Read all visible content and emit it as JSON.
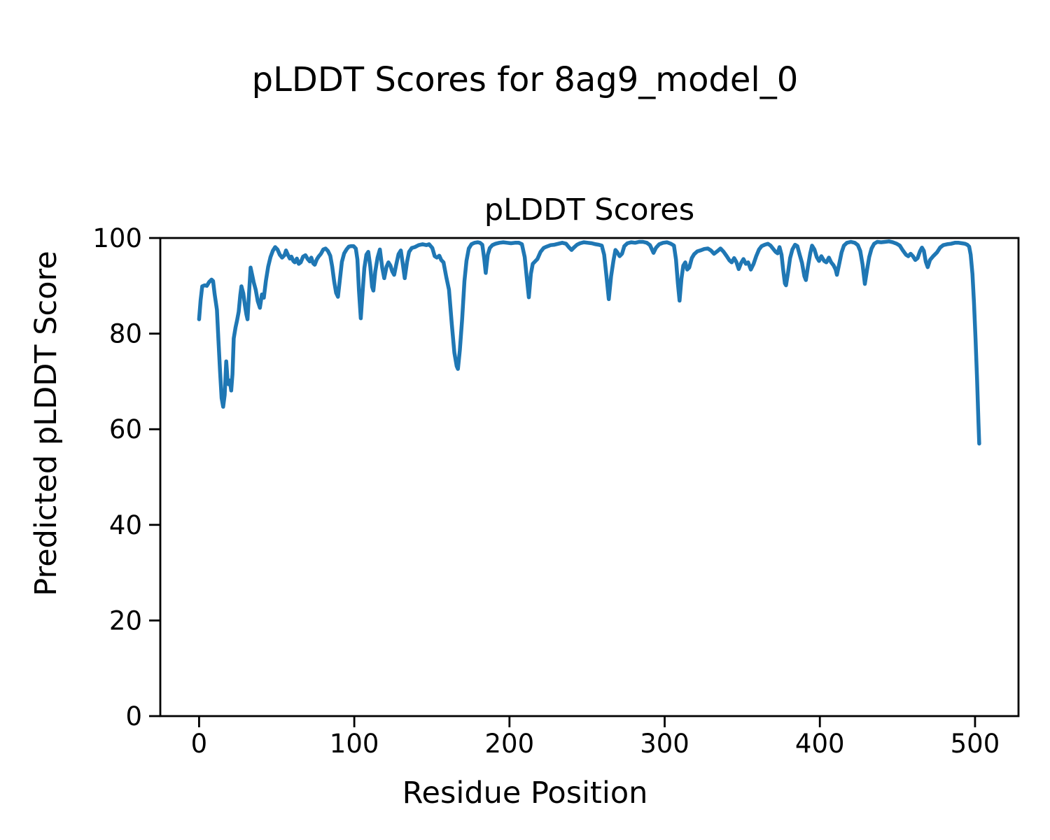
{
  "figure_title": "pLDDT Scores for 8ag9_model_0",
  "chart_data": {
    "type": "line",
    "title": "pLDDT Scores",
    "xlabel": "Residue Position",
    "ylabel": "Predicted pLDDT Score",
    "xlim": [
      -25,
      528
    ],
    "ylim": [
      0,
      100
    ],
    "x_ticks": [
      0,
      100,
      200,
      300,
      400,
      500
    ],
    "y_ticks": [
      0,
      20,
      40,
      60,
      80,
      100
    ],
    "grid": false,
    "legend": null,
    "line_color": "#1f77b4",
    "axis_color": "#000000",
    "series": [
      {
        "name": "pLDDT",
        "points": [
          [
            0,
            83
          ],
          [
            1,
            87
          ],
          [
            2,
            89.9
          ],
          [
            3.5,
            90.1
          ],
          [
            5,
            90
          ],
          [
            6.5,
            90.8
          ],
          [
            8,
            91.3
          ],
          [
            9,
            91
          ],
          [
            10,
            88.3
          ],
          [
            11.5,
            85
          ],
          [
            12.5,
            78.5
          ],
          [
            13.5,
            72
          ],
          [
            14.5,
            66.5
          ],
          [
            15.5,
            64.7
          ],
          [
            16.5,
            67.2
          ],
          [
            17.5,
            74.2
          ],
          [
            18.3,
            70.5
          ],
          [
            19,
            69.4
          ],
          [
            19.8,
            70.2
          ],
          [
            20.7,
            68.1
          ],
          [
            21.5,
            71.5
          ],
          [
            22.3,
            79
          ],
          [
            23.5,
            81.3
          ],
          [
            24.5,
            82.8
          ],
          [
            25.5,
            84.6
          ],
          [
            26.5,
            88
          ],
          [
            27.3,
            89.9
          ],
          [
            28.5,
            88.4
          ],
          [
            29.5,
            86
          ],
          [
            30.5,
            84
          ],
          [
            31.2,
            83
          ],
          [
            32.2,
            88.5
          ],
          [
            33.2,
            93.8
          ],
          [
            34.2,
            92.3
          ],
          [
            35.2,
            90.7
          ],
          [
            36.5,
            89.2
          ],
          [
            37.8,
            86.8
          ],
          [
            39.2,
            85.4
          ],
          [
            40.5,
            88.2
          ],
          [
            41.7,
            87.5
          ],
          [
            43,
            91
          ],
          [
            44.5,
            94
          ],
          [
            46,
            96
          ],
          [
            47.5,
            97.3
          ],
          [
            49,
            98.1
          ],
          [
            50.5,
            97.6
          ],
          [
            52,
            96.5
          ],
          [
            53.5,
            95.9
          ],
          [
            55,
            96.4
          ],
          [
            56,
            97.4
          ],
          [
            57.5,
            96.3
          ],
          [
            58.5,
            95.7
          ],
          [
            59.5,
            96.1
          ],
          [
            60.7,
            95.2
          ],
          [
            61.7,
            94.9
          ],
          [
            63,
            95.7
          ],
          [
            64.2,
            94.6
          ],
          [
            65.5,
            94.9
          ],
          [
            67,
            96.1
          ],
          [
            68.5,
            96.4
          ],
          [
            70,
            95.6
          ],
          [
            71.3,
            95.1
          ],
          [
            72.3,
            95.9
          ],
          [
            73.5,
            94.7
          ],
          [
            74.5,
            94.4
          ],
          [
            75.8,
            95.5
          ],
          [
            77,
            96.1
          ],
          [
            78.5,
            96.7
          ],
          [
            80,
            97.6
          ],
          [
            81.5,
            97.8
          ],
          [
            83,
            97.3
          ],
          [
            84.5,
            96.3
          ],
          [
            85.8,
            94
          ],
          [
            87,
            91
          ],
          [
            88.3,
            88.5
          ],
          [
            89.5,
            87.7
          ],
          [
            90.8,
            91.5
          ],
          [
            92,
            95
          ],
          [
            93.5,
            96.8
          ],
          [
            95,
            97.6
          ],
          [
            96.5,
            98.2
          ],
          [
            98,
            98.3
          ],
          [
            99.5,
            98.3
          ],
          [
            101,
            97.8
          ],
          [
            102,
            95.5
          ],
          [
            103,
            89
          ],
          [
            104.2,
            83.2
          ],
          [
            105.3,
            88.5
          ],
          [
            106.5,
            93.7
          ],
          [
            107.8,
            96.5
          ],
          [
            109,
            97.1
          ],
          [
            110.3,
            94
          ],
          [
            111.5,
            89.8
          ],
          [
            112.3,
            89
          ],
          [
            113.5,
            93
          ],
          [
            115,
            95.9
          ],
          [
            116.5,
            97.6
          ],
          [
            118,
            93.8
          ],
          [
            119.3,
            91.6
          ],
          [
            120.8,
            94
          ],
          [
            122,
            94.9
          ],
          [
            123.3,
            94.2
          ],
          [
            124.5,
            93
          ],
          [
            125.7,
            92.3
          ],
          [
            127,
            94.4
          ],
          [
            128.5,
            96.6
          ],
          [
            130,
            97.4
          ],
          [
            131.3,
            94.5
          ],
          [
            132.5,
            91.6
          ],
          [
            134,
            95
          ],
          [
            135.3,
            97.1
          ],
          [
            137,
            97.9
          ],
          [
            139,
            98.1
          ],
          [
            141.5,
            98.5
          ],
          [
            144,
            98.7
          ],
          [
            146.5,
            98.5
          ],
          [
            148.2,
            98.7
          ],
          [
            150.3,
            97.9
          ],
          [
            151.8,
            96.2
          ],
          [
            153.2,
            95.9
          ],
          [
            154.8,
            96.3
          ],
          [
            156,
            95.4
          ],
          [
            157.5,
            94.9
          ],
          [
            159.3,
            91.8
          ],
          [
            161,
            89.2
          ],
          [
            162.8,
            82
          ],
          [
            164.5,
            76
          ],
          [
            166,
            73.2
          ],
          [
            166.8,
            72.6
          ],
          [
            168,
            76.5
          ],
          [
            169.5,
            83
          ],
          [
            171,
            91
          ],
          [
            172.3,
            95.2
          ],
          [
            173.8,
            97.8
          ],
          [
            175.5,
            98.7
          ],
          [
            177.5,
            99
          ],
          [
            179.5,
            99.1
          ],
          [
            181,
            99
          ],
          [
            182.5,
            98.6
          ],
          [
            183.8,
            95.5
          ],
          [
            184.7,
            92.7
          ],
          [
            186,
            96.5
          ],
          [
            187.3,
            97.9
          ],
          [
            189,
            98.5
          ],
          [
            191,
            98.8
          ],
          [
            193.5,
            99
          ],
          [
            196,
            99.1
          ],
          [
            198.5,
            99
          ],
          [
            201,
            98.9
          ],
          [
            203.5,
            99
          ],
          [
            206,
            99
          ],
          [
            208,
            98.7
          ],
          [
            209.8,
            96
          ],
          [
            211.2,
            91.5
          ],
          [
            212.5,
            87.6
          ],
          [
            213.8,
            92.5
          ],
          [
            215,
            94.6
          ],
          [
            216.5,
            95.1
          ],
          [
            218,
            95.6
          ],
          [
            220,
            97.1
          ],
          [
            222,
            97.9
          ],
          [
            224,
            98.2
          ],
          [
            226.5,
            98.5
          ],
          [
            229,
            98.6
          ],
          [
            231.5,
            98.8
          ],
          [
            234,
            99
          ],
          [
            236.5,
            98.8
          ],
          [
            238.5,
            98
          ],
          [
            240,
            97.5
          ],
          [
            241.5,
            98
          ],
          [
            243.5,
            98.6
          ],
          [
            245.5,
            98.9
          ],
          [
            248,
            99.1
          ],
          [
            250.5,
            99
          ],
          [
            253,
            98.9
          ],
          [
            255.5,
            98.7
          ],
          [
            257.5,
            98.6
          ],
          [
            259.5,
            98.4
          ],
          [
            261,
            96.5
          ],
          [
            262.5,
            92
          ],
          [
            264,
            87.2
          ],
          [
            265.5,
            92
          ],
          [
            267,
            95.3
          ],
          [
            268.3,
            97.5
          ],
          [
            269.5,
            97
          ],
          [
            271,
            96.2
          ],
          [
            272.5,
            96.7
          ],
          [
            274,
            98.3
          ],
          [
            276,
            98.9
          ],
          [
            278.5,
            99.1
          ],
          [
            281,
            99
          ],
          [
            283.5,
            99.2
          ],
          [
            286,
            99.2
          ],
          [
            288.5,
            99
          ],
          [
            290.5,
            98.5
          ],
          [
            292.8,
            96.9
          ],
          [
            294.5,
            98
          ],
          [
            296.5,
            98.7
          ],
          [
            299,
            99
          ],
          [
            301.5,
            99.1
          ],
          [
            304,
            98.8
          ],
          [
            306,
            98.4
          ],
          [
            307.3,
            95.5
          ],
          [
            308.5,
            90.5
          ],
          [
            309.6,
            86.9
          ],
          [
            310.8,
            91.5
          ],
          [
            312,
            94.2
          ],
          [
            313.3,
            94.9
          ],
          [
            314.5,
            93.4
          ],
          [
            315.8,
            93.8
          ],
          [
            317.5,
            95.8
          ],
          [
            319,
            96.6
          ],
          [
            321,
            97.2
          ],
          [
            323,
            97.4
          ],
          [
            325.5,
            97.7
          ],
          [
            327.8,
            97.8
          ],
          [
            329.8,
            97.4
          ],
          [
            331.8,
            96.7
          ],
          [
            333.8,
            97.2
          ],
          [
            336,
            97.8
          ],
          [
            338,
            97.1
          ],
          [
            340,
            96.2
          ],
          [
            341.8,
            95.3
          ],
          [
            343.2,
            94.9
          ],
          [
            344.8,
            95.8
          ],
          [
            346.2,
            95
          ],
          [
            347.7,
            93.5
          ],
          [
            349.3,
            94.8
          ],
          [
            350.8,
            95.6
          ],
          [
            352.3,
            94.6
          ],
          [
            353.8,
            94.9
          ],
          [
            355.5,
            93.4
          ],
          [
            357.3,
            94.6
          ],
          [
            359,
            96.2
          ],
          [
            360.8,
            97.6
          ],
          [
            362.5,
            98.3
          ],
          [
            364.5,
            98.6
          ],
          [
            366.5,
            98.8
          ],
          [
            368.3,
            98.4
          ],
          [
            370,
            97.7
          ],
          [
            371.5,
            97.1
          ],
          [
            372.8,
            96.8
          ],
          [
            374,
            98.1
          ],
          [
            375.3,
            96.5
          ],
          [
            376.3,
            93.5
          ],
          [
            377.5,
            90.5
          ],
          [
            378.2,
            90.1
          ],
          [
            379.5,
            92.8
          ],
          [
            380.8,
            95.8
          ],
          [
            382.3,
            97.6
          ],
          [
            384,
            98.6
          ],
          [
            385.5,
            98.3
          ],
          [
            387,
            96.5
          ],
          [
            388.5,
            94.8
          ],
          [
            390,
            92
          ],
          [
            391,
            91.2
          ],
          [
            392.3,
            94
          ],
          [
            393.8,
            96.8
          ],
          [
            395,
            98.4
          ],
          [
            396.5,
            97.6
          ],
          [
            398,
            96
          ],
          [
            399.5,
            95.2
          ],
          [
            401,
            96.2
          ],
          [
            402.8,
            95.2
          ],
          [
            404.2,
            94.9
          ],
          [
            405.8,
            95.9
          ],
          [
            407.3,
            94.9
          ],
          [
            408.8,
            94.3
          ],
          [
            410.2,
            93.4
          ],
          [
            411,
            92.3
          ],
          [
            412.5,
            94.6
          ],
          [
            414,
            97
          ],
          [
            415.5,
            98.4
          ],
          [
            417.5,
            99
          ],
          [
            420,
            99.2
          ],
          [
            422.5,
            99
          ],
          [
            424.5,
            98.5
          ],
          [
            426,
            97.3
          ],
          [
            427.5,
            94.5
          ],
          [
            429,
            90.4
          ],
          [
            430.5,
            93.5
          ],
          [
            431.8,
            96
          ],
          [
            433.3,
            97.8
          ],
          [
            435,
            98.8
          ],
          [
            437,
            99.2
          ],
          [
            439.5,
            99.1
          ],
          [
            442,
            99.2
          ],
          [
            444.5,
            99.3
          ],
          [
            447,
            99.1
          ],
          [
            449.5,
            98.8
          ],
          [
            451.5,
            98.4
          ],
          [
            453.5,
            97.4
          ],
          [
            455.5,
            96.5
          ],
          [
            457,
            96.2
          ],
          [
            458.5,
            96.7
          ],
          [
            460,
            96.2
          ],
          [
            461.5,
            95.4
          ],
          [
            463,
            95.8
          ],
          [
            464.5,
            97.2
          ],
          [
            465.8,
            98
          ],
          [
            467,
            97.3
          ],
          [
            468.3,
            95
          ],
          [
            469.5,
            93.9
          ],
          [
            471,
            95.4
          ],
          [
            473,
            96.2
          ],
          [
            475.5,
            97
          ],
          [
            477.5,
            98
          ],
          [
            479.5,
            98.5
          ],
          [
            482,
            98.7
          ],
          [
            484.5,
            98.8
          ],
          [
            487,
            99
          ],
          [
            489.5,
            99
          ],
          [
            491.5,
            98.9
          ],
          [
            493.5,
            98.8
          ],
          [
            495,
            98.6
          ],
          [
            496.2,
            98.2
          ],
          [
            497.2,
            96.5
          ],
          [
            498.3,
            92.5
          ],
          [
            499.3,
            86.5
          ],
          [
            500.3,
            79
          ],
          [
            501.3,
            70.5
          ],
          [
            502.2,
            61.5
          ],
          [
            502.7,
            57
          ]
        ]
      }
    ]
  }
}
